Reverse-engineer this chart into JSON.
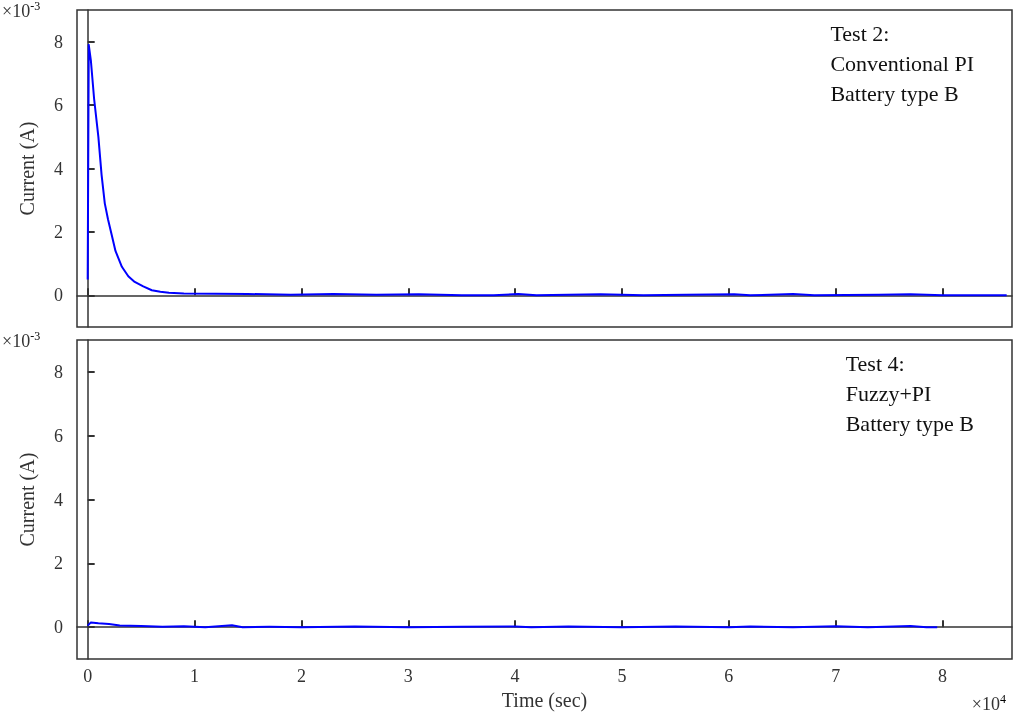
{
  "chart_data": [
    {
      "type": "line",
      "ylabel": "Current (A)",
      "annotations": [
        "Test 2:\nConventional PI\nBattery type B",
        "×10$^{-3}$"
      ],
      "xlim": [
        -0.1,
        8.65
      ],
      "xticks": [
        0,
        1,
        2,
        3,
        4,
        5,
        6,
        7,
        8
      ],
      "ylim": [
        -1,
        9
      ],
      "yticks": [
        0,
        2,
        4,
        6,
        8
      ],
      "tick_labels": "y",
      "series": [
        {
          "color": "#0000ff",
          "x": [
            0,
            0.01,
            0.03,
            0.06,
            0.1,
            0.13,
            0.16,
            0.19,
            0.225,
            0.26,
            0.32,
            0.38,
            0.44,
            0.52,
            0.6,
            0.68,
            0.76,
            0.9,
            1.2,
            1.5,
            1.9,
            2.3,
            2.7,
            3.1,
            3.5,
            3.8,
            4.03,
            4.2,
            4.8,
            5.2,
            5.6,
            6.05,
            6.2,
            6.6,
            6.8,
            7.4,
            7.7,
            8.0,
            8.6
          ],
          "values": [
            0.5,
            7.9,
            7.4,
            6.2,
            5.0,
            3.8,
            2.9,
            2.4,
            1.9,
            1.4,
            0.9,
            0.6,
            0.42,
            0.28,
            0.16,
            0.11,
            0.08,
            0.06,
            0.05,
            0.04,
            0.02,
            0.04,
            0.02,
            0.03,
            0,
            0,
            0.04,
            0,
            0.03,
            0,
            0.02,
            0.03,
            0,
            0.04,
            0,
            0.02,
            0.03,
            0,
            0
          ]
        }
      ]
    },
    {
      "type": "line",
      "ylabel": "Current (A)",
      "xlabel": "Time (sec)",
      "annotations": [
        "Test 4:\nFuzzy+PI\nBattery type B",
        "×10$^{-3}$",
        "×10$^{4}$"
      ],
      "xlim": [
        -0.1,
        8.65
      ],
      "xticks": [
        0,
        1,
        2,
        3,
        4,
        5,
        6,
        7,
        8
      ],
      "ylim": [
        -1,
        9
      ],
      "yticks": [
        0,
        2,
        4,
        6,
        8
      ],
      "series": [
        {
          "color": "#0000ff",
          "x": [
            0,
            0.03,
            0.1,
            0.2,
            0.3,
            0.5,
            0.7,
            0.9,
            1.1,
            1.35,
            1.45,
            1.7,
            2.0,
            2.5,
            3.0,
            3.5,
            4.0,
            4.15,
            4.5,
            5.0,
            5.5,
            6.0,
            6.2,
            6.6,
            7.0,
            7.3,
            7.7,
            7.85,
            7.95
          ],
          "values": [
            0.05,
            0.15,
            0.12,
            0.1,
            0.05,
            0.04,
            0.01,
            0.03,
            0,
            0.06,
            0,
            0.01,
            0,
            0.02,
            0,
            0.01,
            0.02,
            0,
            0.02,
            0,
            0.02,
            0,
            0.02,
            0,
            0.03,
            0,
            0.04,
            0,
            0
          ]
        }
      ]
    }
  ]
}
